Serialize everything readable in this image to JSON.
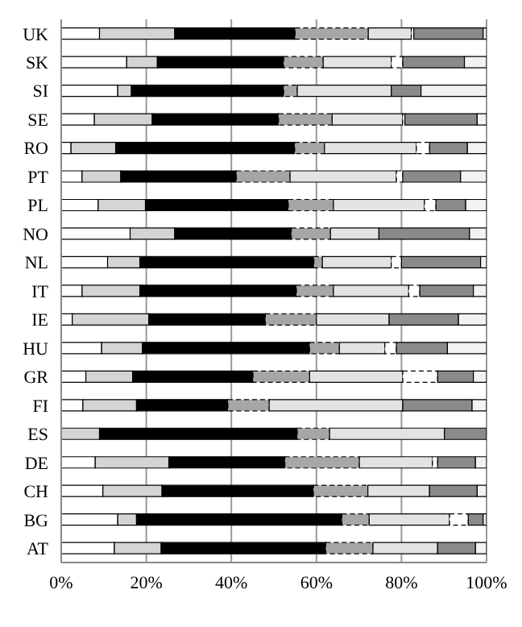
{
  "chart_data": {
    "type": "bar",
    "orientation": "horizontal",
    "stacked": true,
    "categories": [
      "UK",
      "SK",
      "SI",
      "SE",
      "RO",
      "PT",
      "PL",
      "NO",
      "NL",
      "IT",
      "IE",
      "HU",
      "GR",
      "FI",
      "ES",
      "DE",
      "CH",
      "BG",
      "AT"
    ],
    "series": [
      {
        "color": "#ffffff",
        "values": [
          9.0,
          15.4,
          13.3,
          7.8,
          2.3,
          4.9,
          8.7,
          16.2,
          10.9,
          4.9,
          2.6,
          9.5,
          5.8,
          5.1,
          0,
          8.0,
          9.8,
          13.3,
          12.5
        ]
      },
      {
        "color": "#d4d4d4",
        "values": [
          17.7,
          7.2,
          3.2,
          13.6,
          10.5,
          9.1,
          11.1,
          10.5,
          7.6,
          13.6,
          18.0,
          9.6,
          11.0,
          12.6,
          9.0,
          17.3,
          13.9,
          4.4,
          11.0
        ]
      },
      {
        "color": "#000000",
        "values": [
          28.3,
          29.7,
          35.8,
          29.7,
          42.1,
          27.2,
          33.6,
          27.4,
          40.9,
          36.8,
          27.4,
          39.3,
          28.3,
          21.5,
          46.5,
          27.3,
          35.6,
          48.3,
          38.7
        ]
      },
      {
        "color": "#a6a6a6",
        "line_style": "dashed",
        "values": [
          17.2,
          9.3,
          3.2,
          12.6,
          7.0,
          12.6,
          10.6,
          9.2,
          2.0,
          8.7,
          12.0,
          7.0,
          13.3,
          9.7,
          7.6,
          17.5,
          12.8,
          6.4,
          11.1
        ]
      },
      {
        "color": "#e3e3e3",
        "values": [
          10.1,
          16.0,
          22.1,
          16.6,
          21.6,
          25.0,
          21.4,
          11.4,
          16.2,
          17.7,
          17.1,
          10.7,
          21.9,
          31.4,
          27.0,
          17.2,
          14.5,
          18.9,
          15.2
        ]
      },
      {
        "color": "#ffffff",
        "line_style": "dashed",
        "values": [
          0.6,
          2.7,
          0,
          0.5,
          3.1,
          1.5,
          2.7,
          0,
          2.4,
          2.6,
          0,
          2.7,
          8.2,
          0,
          0,
          1.2,
          0,
          4.4,
          0
        ]
      },
      {
        "color": "#8a8a8a",
        "values": [
          16.3,
          14.5,
          7.0,
          17.0,
          8.9,
          13.6,
          7.0,
          21.3,
          18.6,
          12.6,
          16.3,
          12.0,
          8.4,
          16.3,
          9.9,
          8.9,
          11.2,
          3.5,
          8.9
        ]
      },
      {
        "color": "#f2f2f2",
        "values": [
          0.8,
          5.2,
          15.4,
          2.2,
          4.5,
          6.1,
          4.9,
          4.0,
          1.4,
          3.1,
          6.6,
          9.2,
          3.1,
          3.4,
          0,
          2.6,
          2.2,
          0.8,
          2.6
        ]
      }
    ],
    "xlim": [
      0,
      100
    ],
    "xticks": [
      {
        "value": 0,
        "label": "0%"
      },
      {
        "value": 20,
        "label": "20%"
      },
      {
        "value": 40,
        "label": "40%"
      },
      {
        "value": 60,
        "label": "60%"
      },
      {
        "value": 80,
        "label": "80%"
      },
      {
        "value": 100,
        "label": "100%"
      }
    ],
    "grid": "x"
  }
}
